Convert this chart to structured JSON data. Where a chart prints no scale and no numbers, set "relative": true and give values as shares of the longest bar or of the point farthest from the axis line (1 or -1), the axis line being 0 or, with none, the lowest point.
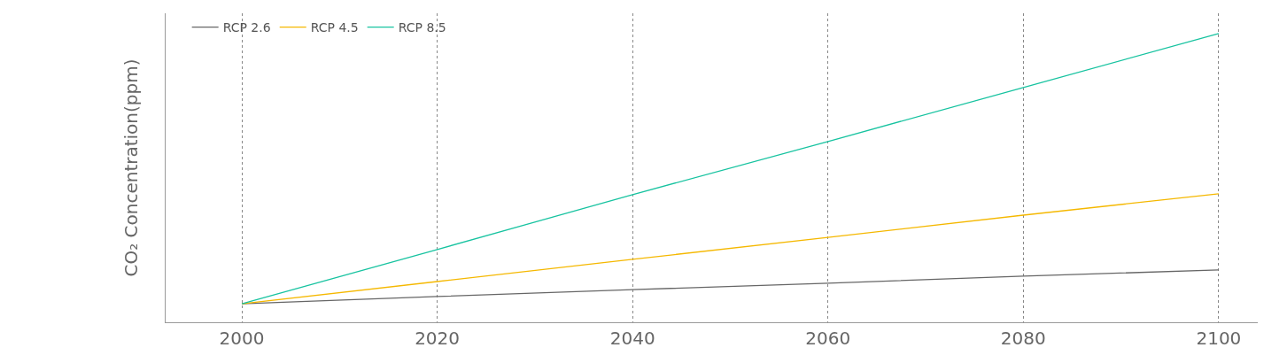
{
  "chart_data": {
    "type": "line",
    "relative": true,
    "ylabel": "CO₂ Concentration(ppm)",
    "x": [
      2000,
      2020,
      2040,
      2060,
      2080,
      2100
    ],
    "xlim": [
      1992.2,
      2104
    ],
    "xticks": [
      2000,
      2020,
      2040,
      2060,
      2080,
      2100
    ],
    "series": [
      {
        "name": "RCP 2.6",
        "color": "#666666",
        "values": [
          0.064,
          0.089,
          0.113,
          0.135,
          0.16,
          0.181
        ]
      },
      {
        "name": "RCP 4.5",
        "color": "#f5b800",
        "values": [
          0.064,
          0.141,
          0.218,
          0.294,
          0.371,
          0.445
        ]
      },
      {
        "name": "RCP 8.5",
        "color": "#17c3a0",
        "values": [
          0.064,
          0.252,
          0.442,
          0.626,
          0.813,
          1
        ]
      }
    ],
    "grid": "x",
    "legend": "top left",
    "marker": "none",
    "line_style": "solid"
  }
}
